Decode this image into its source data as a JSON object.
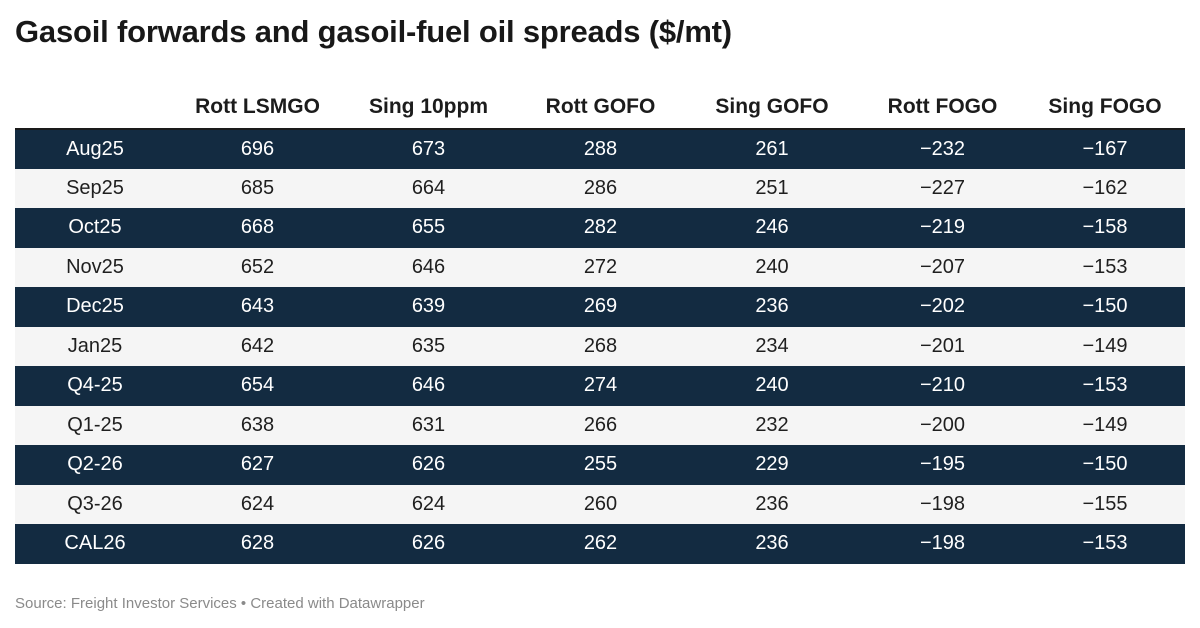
{
  "title": "Gasoil forwards and gasoil-fuel oil spreads ($/mt)",
  "source": "Source: Freight Investor Services • Created with Datawrapper",
  "chart_data": {
    "type": "table",
    "title": "Gasoil forwards and gasoil-fuel oil spreads ($/mt)",
    "columns": [
      "",
      "Rott LSMGO",
      "Sing 10ppm",
      "Rott GOFO",
      "Sing GOFO",
      "Rott FOGO",
      "Sing FOGO"
    ],
    "rows": [
      [
        "Aug25",
        "696",
        "673",
        "288",
        "261",
        "−232",
        "−167"
      ],
      [
        "Sep25",
        "685",
        "664",
        "286",
        "251",
        "−227",
        "−162"
      ],
      [
        "Oct25",
        "668",
        "655",
        "282",
        "246",
        "−219",
        "−158"
      ],
      [
        "Nov25",
        "652",
        "646",
        "272",
        "240",
        "−207",
        "−153"
      ],
      [
        "Dec25",
        "643",
        "639",
        "269",
        "236",
        "−202",
        "−150"
      ],
      [
        "Jan25",
        "642",
        "635",
        "268",
        "234",
        "−201",
        "−149"
      ],
      [
        "Q4-25",
        "654",
        "646",
        "274",
        "240",
        "−210",
        "−153"
      ],
      [
        "Q1-25",
        "638",
        "631",
        "266",
        "232",
        "−200",
        "−149"
      ],
      [
        "Q2-26",
        "627",
        "626",
        "255",
        "229",
        "−195",
        "−150"
      ],
      [
        "Q3-26",
        "624",
        "624",
        "260",
        "236",
        "−198",
        "−155"
      ],
      [
        "CAL26",
        "628",
        "626",
        "262",
        "236",
        "−198",
        "−153"
      ]
    ],
    "row_colors": {
      "dark": "#132b41",
      "light": "#f5f5f5"
    }
  }
}
